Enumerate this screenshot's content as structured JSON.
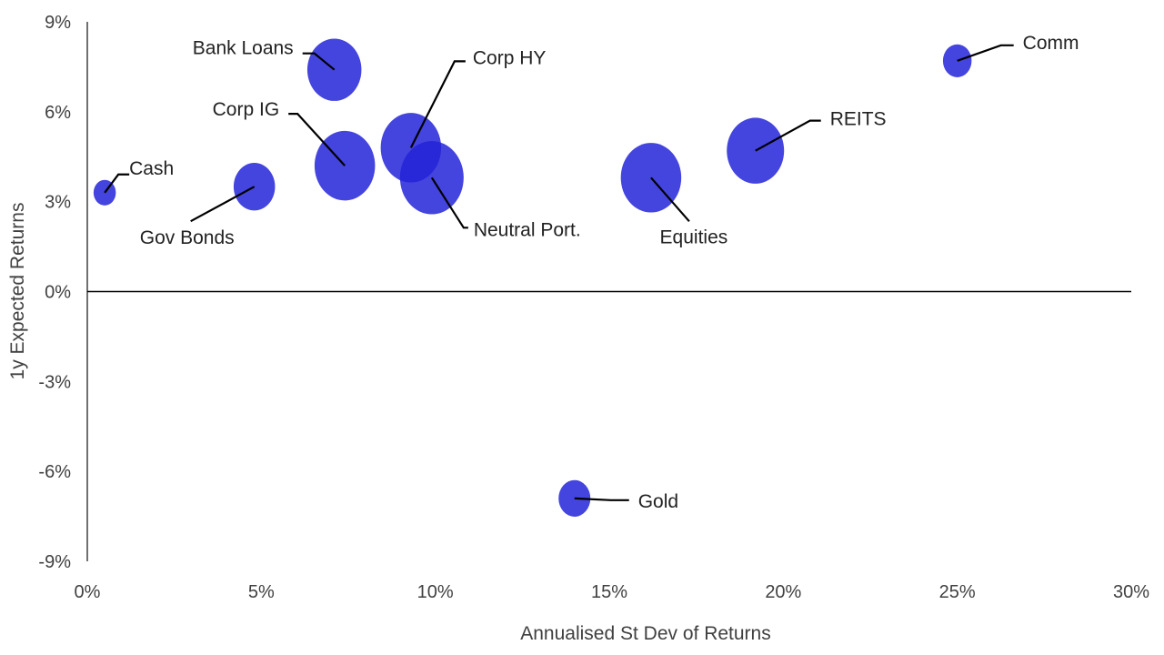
{
  "chart_data": {
    "type": "scatter",
    "title": "",
    "xlabel": "Annualised St Dev of Returns",
    "ylabel": "1y Expected Returns",
    "xlim": [
      0,
      30
    ],
    "ylim": [
      -9,
      9
    ],
    "x_ticks": [
      "0%",
      "5%",
      "10%",
      "15%",
      "20%",
      "25%",
      "30%"
    ],
    "y_ticks": [
      "9%",
      "6%",
      "3%",
      "0%",
      "-3%",
      "-6%",
      "-9%"
    ],
    "grid": false,
    "legend": "none",
    "bubble_color": "#2323D8",
    "points": [
      {
        "label": "Cash",
        "x": 0.5,
        "y": 3.3,
        "size": 0.7
      },
      {
        "label": "Gov Bonds",
        "x": 4.8,
        "y": 3.5,
        "size": 1.3
      },
      {
        "label": "Bank Loans",
        "x": 7.1,
        "y": 7.4,
        "size": 1.7
      },
      {
        "label": "Corp IG",
        "x": 7.4,
        "y": 4.2,
        "size": 1.9
      },
      {
        "label": "Corp HY",
        "x": 9.3,
        "y": 4.8,
        "size": 1.9
      },
      {
        "label": "Neutral Port.",
        "x": 9.9,
        "y": 3.8,
        "size": 2.0
      },
      {
        "label": "Equities",
        "x": 16.2,
        "y": 3.8,
        "size": 1.9
      },
      {
        "label": "REITS",
        "x": 19.2,
        "y": 4.7,
        "size": 1.8
      },
      {
        "label": "Comm",
        "x": 25.0,
        "y": 7.7,
        "size": 0.9
      },
      {
        "label": "Gold",
        "x": 14.0,
        "y": -6.9,
        "size": 1.0
      }
    ]
  }
}
